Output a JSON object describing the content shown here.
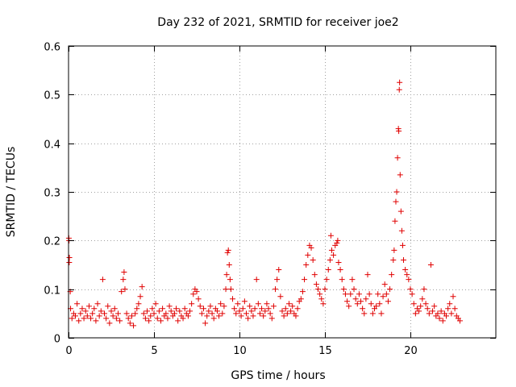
{
  "chart_data": {
    "type": "scatter",
    "title": "Day 232 of 2021, SRMTID for receiver joe2",
    "xlabel": "GPS time / hours",
    "ylabel": "SRMTID / TECUs",
    "xlim": [
      0,
      25
    ],
    "ylim": [
      0,
      0.6
    ],
    "x_ticks": [
      0,
      5,
      10,
      15,
      20
    ],
    "y_ticks": [
      0,
      0.1,
      0.2,
      0.3,
      0.4,
      0.5,
      0.6
    ],
    "x_tick_labels": [
      "0",
      "5",
      "10",
      "15",
      "20"
    ],
    "y_tick_labels": [
      "0",
      "0.1",
      "0.2",
      "0.3",
      "0.4",
      "0.5",
      "0.6"
    ],
    "grid": true,
    "marker": "plus",
    "color": "#e00000",
    "series": [
      {
        "name": "SRMTID",
        "points": [
          [
            0.02,
            0.205
          ],
          [
            0.03,
            0.2
          ],
          [
            0.05,
            0.165
          ],
          [
            0.04,
            0.155
          ],
          [
            0.1,
            0.095
          ],
          [
            0.12,
            0.06
          ],
          [
            0.2,
            0.04
          ],
          [
            0.3,
            0.05
          ],
          [
            0.4,
            0.045
          ],
          [
            0.5,
            0.07
          ],
          [
            0.6,
            0.035
          ],
          [
            0.7,
            0.05
          ],
          [
            0.8,
            0.06
          ],
          [
            0.9,
            0.04
          ],
          [
            1.0,
            0.055
          ],
          [
            1.1,
            0.045
          ],
          [
            1.2,
            0.065
          ],
          [
            1.3,
            0.04
          ],
          [
            1.4,
            0.05
          ],
          [
            1.5,
            0.06
          ],
          [
            1.6,
            0.035
          ],
          [
            1.7,
            0.07
          ],
          [
            1.8,
            0.045
          ],
          [
            1.9,
            0.055
          ],
          [
            2.0,
            0.12
          ],
          [
            2.1,
            0.05
          ],
          [
            2.2,
            0.04
          ],
          [
            2.3,
            0.065
          ],
          [
            2.4,
            0.03
          ],
          [
            2.5,
            0.055
          ],
          [
            2.6,
            0.045
          ],
          [
            2.7,
            0.06
          ],
          [
            2.8,
            0.04
          ],
          [
            2.9,
            0.05
          ],
          [
            3.0,
            0.035
          ],
          [
            3.1,
            0.095
          ],
          [
            3.2,
            0.12
          ],
          [
            3.25,
            0.135
          ],
          [
            3.3,
            0.1
          ],
          [
            3.4,
            0.05
          ],
          [
            3.5,
            0.04
          ],
          [
            3.6,
            0.03
          ],
          [
            3.7,
            0.045
          ],
          [
            3.8,
            0.025
          ],
          [
            3.9,
            0.05
          ],
          [
            4.0,
            0.06
          ],
          [
            4.1,
            0.07
          ],
          [
            4.2,
            0.085
          ],
          [
            4.3,
            0.105
          ],
          [
            4.4,
            0.05
          ],
          [
            4.5,
            0.04
          ],
          [
            4.6,
            0.055
          ],
          [
            4.7,
            0.035
          ],
          [
            4.8,
            0.045
          ],
          [
            4.9,
            0.06
          ],
          [
            5.0,
            0.05
          ],
          [
            5.1,
            0.07
          ],
          [
            5.2,
            0.04
          ],
          [
            5.3,
            0.055
          ],
          [
            5.4,
            0.035
          ],
          [
            5.5,
            0.06
          ],
          [
            5.6,
            0.045
          ],
          [
            5.7,
            0.05
          ],
          [
            5.8,
            0.04
          ],
          [
            5.9,
            0.065
          ],
          [
            6.0,
            0.055
          ],
          [
            6.1,
            0.045
          ],
          [
            6.2,
            0.05
          ],
          [
            6.3,
            0.06
          ],
          [
            6.4,
            0.035
          ],
          [
            6.5,
            0.055
          ],
          [
            6.6,
            0.045
          ],
          [
            6.7,
            0.04
          ],
          [
            6.8,
            0.06
          ],
          [
            6.9,
            0.05
          ],
          [
            7.0,
            0.045
          ],
          [
            7.1,
            0.055
          ],
          [
            7.2,
            0.07
          ],
          [
            7.3,
            0.09
          ],
          [
            7.4,
            0.1
          ],
          [
            7.5,
            0.095
          ],
          [
            7.6,
            0.08
          ],
          [
            7.7,
            0.065
          ],
          [
            7.8,
            0.05
          ],
          [
            7.9,
            0.06
          ],
          [
            8.0,
            0.03
          ],
          [
            8.1,
            0.045
          ],
          [
            8.2,
            0.055
          ],
          [
            8.3,
            0.065
          ],
          [
            8.4,
            0.05
          ],
          [
            8.5,
            0.04
          ],
          [
            8.6,
            0.06
          ],
          [
            8.7,
            0.055
          ],
          [
            8.8,
            0.045
          ],
          [
            8.9,
            0.07
          ],
          [
            9.0,
            0.05
          ],
          [
            9.1,
            0.065
          ],
          [
            9.2,
            0.1
          ],
          [
            9.25,
            0.13
          ],
          [
            9.3,
            0.175
          ],
          [
            9.35,
            0.18
          ],
          [
            9.4,
            0.15
          ],
          [
            9.45,
            0.12
          ],
          [
            9.5,
            0.1
          ],
          [
            9.6,
            0.08
          ],
          [
            9.7,
            0.06
          ],
          [
            9.8,
            0.05
          ],
          [
            9.9,
            0.07
          ],
          [
            10.0,
            0.055
          ],
          [
            10.1,
            0.045
          ],
          [
            10.2,
            0.06
          ],
          [
            10.3,
            0.075
          ],
          [
            10.4,
            0.05
          ],
          [
            10.5,
            0.04
          ],
          [
            10.6,
            0.065
          ],
          [
            10.7,
            0.055
          ],
          [
            10.8,
            0.045
          ],
          [
            10.9,
            0.06
          ],
          [
            11.0,
            0.12
          ],
          [
            11.1,
            0.07
          ],
          [
            11.2,
            0.05
          ],
          [
            11.3,
            0.06
          ],
          [
            11.4,
            0.045
          ],
          [
            11.5,
            0.055
          ],
          [
            11.6,
            0.07
          ],
          [
            11.7,
            0.06
          ],
          [
            11.8,
            0.05
          ],
          [
            11.9,
            0.04
          ],
          [
            12.0,
            0.065
          ],
          [
            12.1,
            0.1
          ],
          [
            12.2,
            0.12
          ],
          [
            12.3,
            0.14
          ],
          [
            12.4,
            0.085
          ],
          [
            12.5,
            0.055
          ],
          [
            12.6,
            0.045
          ],
          [
            12.7,
            0.06
          ],
          [
            12.8,
            0.05
          ],
          [
            12.9,
            0.07
          ],
          [
            13.0,
            0.055
          ],
          [
            13.1,
            0.065
          ],
          [
            13.2,
            0.05
          ],
          [
            13.3,
            0.045
          ],
          [
            13.4,
            0.06
          ],
          [
            13.5,
            0.075
          ],
          [
            13.6,
            0.08
          ],
          [
            13.7,
            0.095
          ],
          [
            13.8,
            0.12
          ],
          [
            13.9,
            0.15
          ],
          [
            14.0,
            0.17
          ],
          [
            14.1,
            0.19
          ],
          [
            14.2,
            0.185
          ],
          [
            14.3,
            0.16
          ],
          [
            14.4,
            0.13
          ],
          [
            14.5,
            0.11
          ],
          [
            14.6,
            0.1
          ],
          [
            14.7,
            0.09
          ],
          [
            14.8,
            0.08
          ],
          [
            14.9,
            0.07
          ],
          [
            15.0,
            0.1
          ],
          [
            15.1,
            0.12
          ],
          [
            15.2,
            0.14
          ],
          [
            15.3,
            0.16
          ],
          [
            15.35,
            0.21
          ],
          [
            15.4,
            0.18
          ],
          [
            15.5,
            0.17
          ],
          [
            15.6,
            0.19
          ],
          [
            15.7,
            0.195
          ],
          [
            15.75,
            0.2
          ],
          [
            15.8,
            0.155
          ],
          [
            15.9,
            0.14
          ],
          [
            16.0,
            0.12
          ],
          [
            16.1,
            0.1
          ],
          [
            16.2,
            0.09
          ],
          [
            16.3,
            0.075
          ],
          [
            16.4,
            0.065
          ],
          [
            16.5,
            0.09
          ],
          [
            16.6,
            0.12
          ],
          [
            16.7,
            0.1
          ],
          [
            16.8,
            0.08
          ],
          [
            16.9,
            0.07
          ],
          [
            17.0,
            0.09
          ],
          [
            17.1,
            0.075
          ],
          [
            17.2,
            0.06
          ],
          [
            17.3,
            0.05
          ],
          [
            17.4,
            0.08
          ],
          [
            17.5,
            0.13
          ],
          [
            17.6,
            0.09
          ],
          [
            17.7,
            0.07
          ],
          [
            17.8,
            0.05
          ],
          [
            17.9,
            0.06
          ],
          [
            18.0,
            0.065
          ],
          [
            18.1,
            0.09
          ],
          [
            18.2,
            0.07
          ],
          [
            18.3,
            0.05
          ],
          [
            18.4,
            0.085
          ],
          [
            18.5,
            0.11
          ],
          [
            18.6,
            0.09
          ],
          [
            18.7,
            0.075
          ],
          [
            18.8,
            0.1
          ],
          [
            18.9,
            0.13
          ],
          [
            19.0,
            0.16
          ],
          [
            19.05,
            0.18
          ],
          [
            19.1,
            0.24
          ],
          [
            19.15,
            0.28
          ],
          [
            19.2,
            0.3
          ],
          [
            19.25,
            0.37
          ],
          [
            19.3,
            0.43
          ],
          [
            19.32,
            0.425
          ],
          [
            19.35,
            0.51
          ],
          [
            19.37,
            0.525
          ],
          [
            19.4,
            0.335
          ],
          [
            19.45,
            0.26
          ],
          [
            19.5,
            0.22
          ],
          [
            19.55,
            0.19
          ],
          [
            19.6,
            0.16
          ],
          [
            19.7,
            0.14
          ],
          [
            19.8,
            0.13
          ],
          [
            19.9,
            0.12
          ],
          [
            20.0,
            0.1
          ],
          [
            20.1,
            0.09
          ],
          [
            20.2,
            0.07
          ],
          [
            20.3,
            0.05
          ],
          [
            20.4,
            0.06
          ],
          [
            20.5,
            0.055
          ],
          [
            20.6,
            0.065
          ],
          [
            20.7,
            0.08
          ],
          [
            20.8,
            0.1
          ],
          [
            20.9,
            0.07
          ],
          [
            21.0,
            0.06
          ],
          [
            21.1,
            0.05
          ],
          [
            21.2,
            0.15
          ],
          [
            21.3,
            0.055
          ],
          [
            21.4,
            0.065
          ],
          [
            21.5,
            0.045
          ],
          [
            21.6,
            0.05
          ],
          [
            21.7,
            0.04
          ],
          [
            21.8,
            0.055
          ],
          [
            21.9,
            0.035
          ],
          [
            22.0,
            0.05
          ],
          [
            22.1,
            0.045
          ],
          [
            22.2,
            0.06
          ],
          [
            22.3,
            0.07
          ],
          [
            22.4,
            0.05
          ],
          [
            22.5,
            0.085
          ],
          [
            22.6,
            0.06
          ],
          [
            22.7,
            0.045
          ],
          [
            22.8,
            0.04
          ],
          [
            22.9,
            0.035
          ]
        ]
      }
    ]
  }
}
